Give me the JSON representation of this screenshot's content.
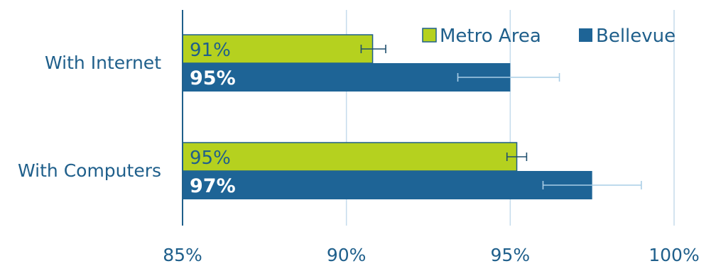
{
  "chart_data": {
    "type": "bar",
    "orientation": "horizontal",
    "categories": [
      "With Internet",
      "With Computers"
    ],
    "series": [
      {
        "name": "Metro Area",
        "color": "#b5d11f",
        "values": [
          90.8,
          95.2
        ],
        "value_labels": [
          "91%",
          "95%"
        ],
        "error_low": [
          90.45,
          94.9
        ],
        "error_high": [
          91.2,
          95.5
        ]
      },
      {
        "name": "Bellevue",
        "color": "#1e6496",
        "values": [
          95.0,
          97.5
        ],
        "value_labels": [
          "95%",
          "97%"
        ],
        "error_low": [
          93.4,
          96.0
        ],
        "error_high": [
          96.5,
          99.0
        ]
      }
    ],
    "xlim": [
      85,
      100
    ],
    "xticks": [
      85,
      90,
      95,
      100
    ],
    "xtick_labels": [
      "85%",
      "90%",
      "95%",
      "100%"
    ],
    "grid": true,
    "legend_position": "top-right",
    "title": "",
    "xlabel": "",
    "ylabel": ""
  }
}
